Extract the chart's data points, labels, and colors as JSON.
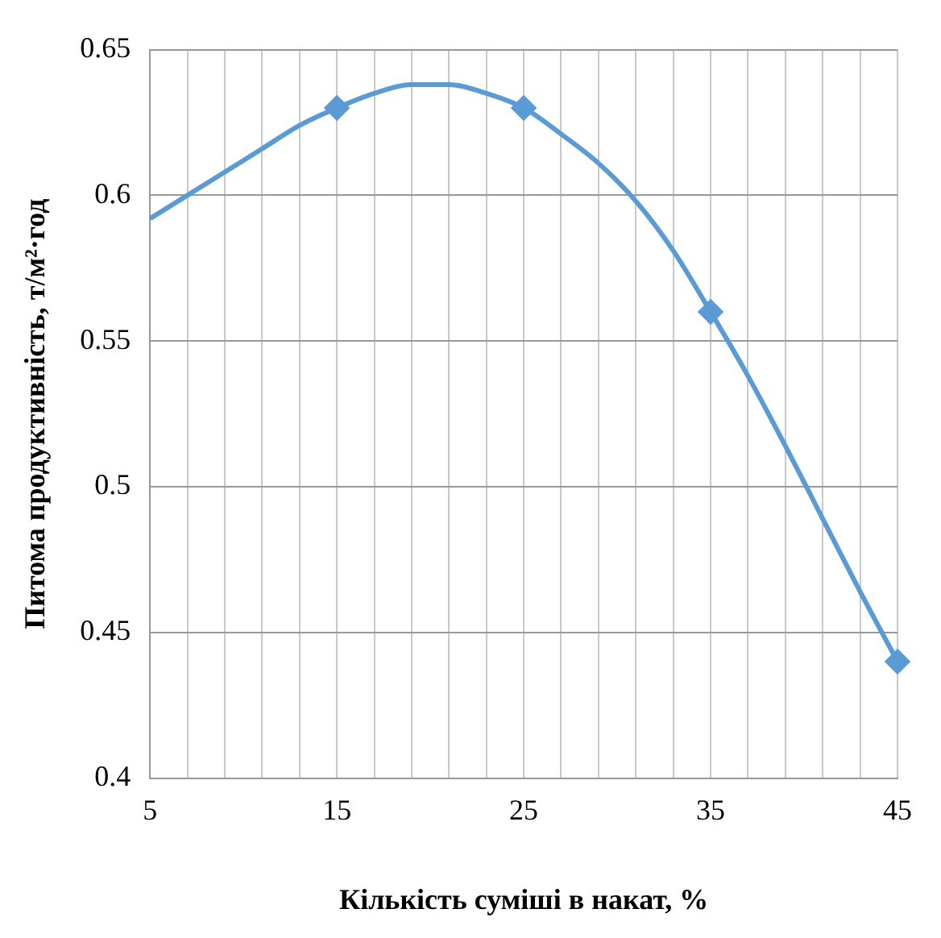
{
  "chart_data": {
    "type": "line",
    "xlabel": "Кількість суміші в накат, %",
    "ylabel": "Питома продуктивність, т/м²·год",
    "series": [
      {
        "color": "#5b9bd5",
        "marker": "none",
        "x": [
          5,
          7,
          9,
          11,
          13,
          15,
          17,
          19,
          21,
          23,
          25,
          27,
          29,
          31,
          33,
          35,
          37,
          39,
          41,
          43,
          45
        ],
        "values": [
          0.592,
          0.6,
          0.608,
          0.616,
          0.624,
          0.63,
          0.635,
          0.638,
          0.638,
          0.635,
          0.63,
          0.621,
          0.611,
          0.598,
          0.581,
          0.56,
          0.538,
          0.514,
          0.489,
          0.464,
          0.44
        ]
      },
      {
        "type": "scatter",
        "color": "#5b9bd5",
        "marker": "diamond",
        "x": [
          15,
          25,
          35,
          45
        ],
        "values": [
          0.63,
          0.63,
          0.56,
          0.44
        ]
      }
    ],
    "xlim": [
      5,
      45
    ],
    "xticks": [
      5,
      {
        "value": 7,
        "label": null
      },
      {
        "value": 9,
        "label": null
      },
      {
        "value": 11,
        "label": null
      },
      {
        "value": 13,
        "label": null
      },
      15,
      {
        "value": 17,
        "label": null
      },
      {
        "value": 19,
        "label": null
      },
      {
        "value": 21,
        "label": null
      },
      {
        "value": 23,
        "label": null
      },
      25,
      {
        "value": 27,
        "label": null
      },
      {
        "value": 29,
        "label": null
      },
      {
        "value": 31,
        "label": null
      },
      {
        "value": 33,
        "label": null
      },
      35,
      {
        "value": 37,
        "label": null
      },
      {
        "value": 39,
        "label": null
      },
      {
        "value": 41,
        "label": null
      },
      {
        "value": 43,
        "label": null
      },
      45
    ],
    "ylim": [
      0.4,
      0.65
    ],
    "yticks": [
      0.4,
      0.45,
      0.5,
      0.55,
      0.6,
      0.65
    ],
    "grid": true,
    "legend": false
  }
}
